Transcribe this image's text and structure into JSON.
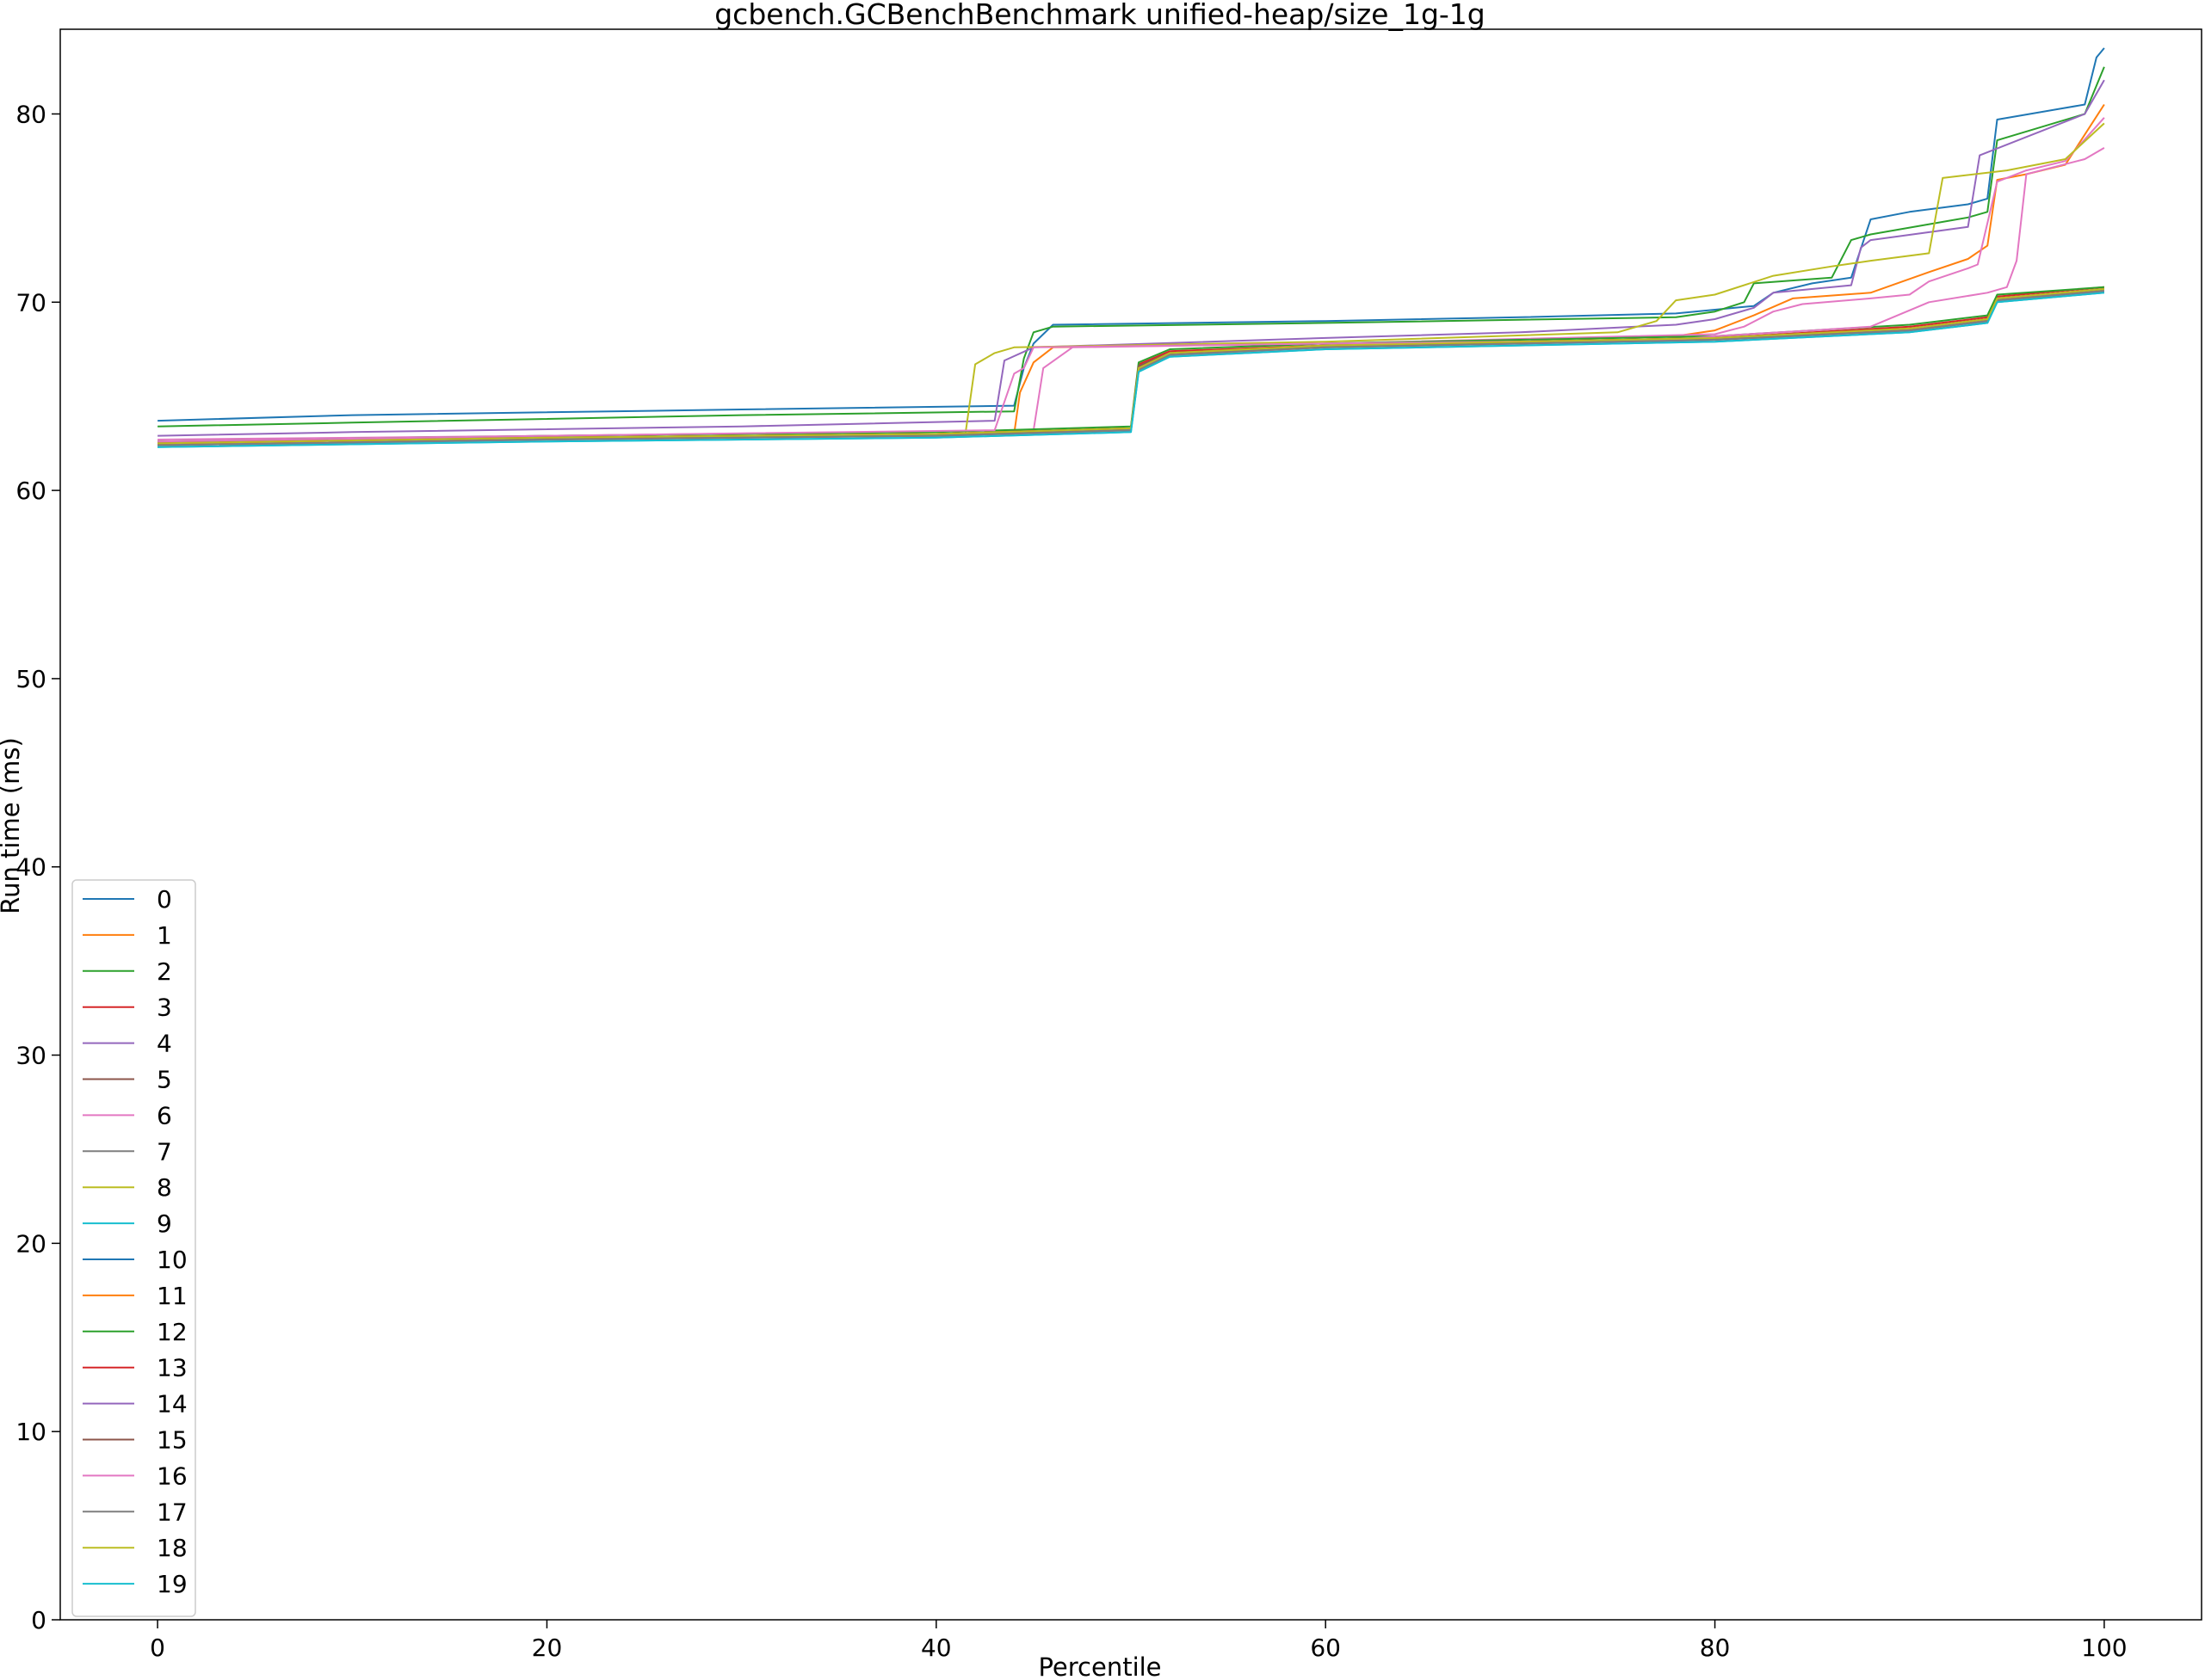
{
  "chart_data": {
    "type": "line",
    "title": "gcbench.GCBenchBenchmark unified-heap/size_1g-1g",
    "xlabel": "Percentile",
    "ylabel": "Run time (ms)",
    "xlim": [
      -5,
      105
    ],
    "ylim": [
      0,
      84.5
    ],
    "xticks": [
      0,
      20,
      40,
      60,
      80,
      100
    ],
    "yticks": [
      0,
      10,
      20,
      30,
      40,
      50,
      60,
      70,
      80
    ],
    "grid": false,
    "legend_position": "lower-left",
    "series": [
      {
        "name": "0",
        "color": "#1f77b4",
        "points": [
          [
            0,
            63.7
          ],
          [
            10,
            64.0
          ],
          [
            30,
            64.3
          ],
          [
            44,
            64.5
          ],
          [
            44.5,
            66.5
          ],
          [
            45,
            67.8
          ],
          [
            46,
            68.8
          ],
          [
            60,
            69.0
          ],
          [
            70,
            69.2
          ],
          [
            78,
            69.4
          ],
          [
            82,
            69.8
          ],
          [
            83,
            70.5
          ],
          [
            85,
            71.0
          ],
          [
            87,
            71.3
          ],
          [
            88,
            74.4
          ],
          [
            90,
            74.8
          ],
          [
            93,
            75.2
          ],
          [
            94,
            75.5
          ],
          [
            94.5,
            79.7
          ],
          [
            99,
            80.5
          ],
          [
            99.6,
            83.0
          ],
          [
            100,
            83.5
          ]
        ]
      },
      {
        "name": "1",
        "color": "#ff7f0e",
        "points": [
          [
            0,
            62.5
          ],
          [
            20,
            62.8
          ],
          [
            44,
            63.0
          ],
          [
            44.3,
            65.2
          ],
          [
            45,
            66.8
          ],
          [
            46,
            67.6
          ],
          [
            60,
            67.8
          ],
          [
            78,
            68.2
          ],
          [
            80,
            68.5
          ],
          [
            82,
            69.3
          ],
          [
            84,
            70.2
          ],
          [
            88,
            70.5
          ],
          [
            91,
            71.6
          ],
          [
            93,
            72.3
          ],
          [
            94,
            73.0
          ],
          [
            94.5,
            76.5
          ],
          [
            96,
            76.8
          ],
          [
            98,
            77.3
          ],
          [
            100,
            80.5
          ]
        ]
      },
      {
        "name": "2",
        "color": "#2ca02c",
        "points": [
          [
            0,
            63.4
          ],
          [
            10,
            63.6
          ],
          [
            30,
            64.0
          ],
          [
            44,
            64.2
          ],
          [
            44.5,
            67.0
          ],
          [
            45,
            68.4
          ],
          [
            46,
            68.7
          ],
          [
            60,
            68.9
          ],
          [
            78,
            69.2
          ],
          [
            80,
            69.5
          ],
          [
            81.5,
            70.0
          ],
          [
            82,
            71.0
          ],
          [
            86,
            71.3
          ],
          [
            87,
            73.3
          ],
          [
            88,
            73.6
          ],
          [
            93,
            74.5
          ],
          [
            94,
            74.8
          ],
          [
            94.5,
            78.6
          ],
          [
            99,
            80.0
          ],
          [
            100,
            82.5
          ]
        ]
      },
      {
        "name": "3",
        "color": "#d62728",
        "points": [
          [
            0,
            62.6
          ],
          [
            20,
            62.8
          ],
          [
            40,
            63.0
          ],
          [
            50,
            63.3
          ],
          [
            50.4,
            66.7
          ],
          [
            52,
            67.4
          ],
          [
            60,
            67.7
          ],
          [
            80,
            68.1
          ],
          [
            90,
            68.7
          ],
          [
            94,
            69.2
          ],
          [
            94.5,
            70.3
          ],
          [
            100,
            70.8
          ]
        ]
      },
      {
        "name": "4",
        "color": "#9467bd",
        "points": [
          [
            0,
            62.9
          ],
          [
            10,
            63.1
          ],
          [
            30,
            63.4
          ],
          [
            43,
            63.7
          ],
          [
            43.5,
            66.9
          ],
          [
            45,
            67.6
          ],
          [
            60,
            68.1
          ],
          [
            70,
            68.4
          ],
          [
            78,
            68.8
          ],
          [
            80,
            69.1
          ],
          [
            82,
            69.7
          ],
          [
            83,
            70.5
          ],
          [
            87,
            70.9
          ],
          [
            87.5,
            72.9
          ],
          [
            88,
            73.3
          ],
          [
            93,
            74.0
          ],
          [
            93.6,
            77.8
          ],
          [
            99,
            80.0
          ],
          [
            100,
            81.8
          ]
        ]
      },
      {
        "name": "5",
        "color": "#8c564b",
        "points": [
          [
            0,
            62.5
          ],
          [
            20,
            62.8
          ],
          [
            40,
            63.0
          ],
          [
            50,
            63.3
          ],
          [
            50.4,
            66.5
          ],
          [
            52,
            67.3
          ],
          [
            60,
            67.7
          ],
          [
            80,
            68.1
          ],
          [
            90,
            68.6
          ],
          [
            94,
            69.1
          ],
          [
            94.5,
            70.2
          ],
          [
            100,
            70.7
          ]
        ]
      },
      {
        "name": "6",
        "color": "#e377c2",
        "points": [
          [
            0,
            62.7
          ],
          [
            20,
            62.9
          ],
          [
            45,
            63.2
          ],
          [
            45.5,
            66.5
          ],
          [
            47,
            67.6
          ],
          [
            60,
            67.8
          ],
          [
            80,
            68.3
          ],
          [
            81.5,
            68.7
          ],
          [
            83,
            69.5
          ],
          [
            84.5,
            69.9
          ],
          [
            88,
            70.2
          ],
          [
            90,
            70.4
          ],
          [
            91,
            71.1
          ],
          [
            93,
            71.8
          ],
          [
            93.5,
            72.0
          ],
          [
            94.5,
            76.4
          ],
          [
            96,
            77.0
          ],
          [
            98,
            77.5
          ],
          [
            100,
            79.8
          ]
        ]
      },
      {
        "name": "7",
        "color": "#7f7f7f",
        "points": [
          [
            0,
            62.4
          ],
          [
            20,
            62.7
          ],
          [
            40,
            62.9
          ],
          [
            50,
            63.2
          ],
          [
            50.4,
            66.4
          ],
          [
            52,
            67.2
          ],
          [
            60,
            67.6
          ],
          [
            80,
            68.0
          ],
          [
            90,
            68.5
          ],
          [
            94,
            69.0
          ],
          [
            94.5,
            70.1
          ],
          [
            100,
            70.6
          ]
        ]
      },
      {
        "name": "8",
        "color": "#bcbd22",
        "points": [
          [
            0,
            62.6
          ],
          [
            20,
            62.8
          ],
          [
            41.5,
            63.0
          ],
          [
            42,
            66.7
          ],
          [
            43,
            67.3
          ],
          [
            44,
            67.6
          ],
          [
            60,
            67.9
          ],
          [
            75,
            68.4
          ],
          [
            77,
            69.0
          ],
          [
            78,
            70.1
          ],
          [
            80,
            70.4
          ],
          [
            83,
            71.4
          ],
          [
            86,
            71.9
          ],
          [
            88,
            72.2
          ],
          [
            91,
            72.6
          ],
          [
            91.7,
            76.6
          ],
          [
            95,
            77.0
          ],
          [
            98,
            77.6
          ],
          [
            100,
            79.5
          ]
        ]
      },
      {
        "name": "9",
        "color": "#17becf",
        "points": [
          [
            0,
            62.3
          ],
          [
            20,
            62.6
          ],
          [
            40,
            62.8
          ],
          [
            50,
            63.1
          ],
          [
            50.4,
            66.3
          ],
          [
            52,
            67.1
          ],
          [
            60,
            67.5
          ],
          [
            80,
            67.9
          ],
          [
            90,
            68.4
          ],
          [
            94,
            68.9
          ],
          [
            94.5,
            70.0
          ],
          [
            100,
            70.5
          ]
        ]
      },
      {
        "name": "10",
        "color": "#1f77b4",
        "points": [
          [
            0,
            62.4
          ],
          [
            20,
            62.7
          ],
          [
            40,
            62.9
          ],
          [
            50,
            63.2
          ],
          [
            50.4,
            66.6
          ],
          [
            52,
            67.3
          ],
          [
            60,
            67.6
          ],
          [
            80,
            68.0
          ],
          [
            90,
            68.5
          ],
          [
            94,
            69.0
          ],
          [
            94.5,
            70.1
          ],
          [
            100,
            70.6
          ]
        ]
      },
      {
        "name": "11",
        "color": "#ff7f0e",
        "points": [
          [
            0,
            62.5
          ],
          [
            20,
            62.8
          ],
          [
            40,
            63.0
          ],
          [
            50,
            63.3
          ],
          [
            50.4,
            66.5
          ],
          [
            52,
            67.3
          ],
          [
            60,
            67.7
          ],
          [
            80,
            68.1
          ],
          [
            90,
            68.6
          ],
          [
            94,
            69.1
          ],
          [
            94.5,
            70.2
          ],
          [
            100,
            70.7
          ]
        ]
      },
      {
        "name": "12",
        "color": "#2ca02c",
        "points": [
          [
            0,
            62.6
          ],
          [
            20,
            62.9
          ],
          [
            40,
            63.1
          ],
          [
            50,
            63.4
          ],
          [
            50.4,
            66.8
          ],
          [
            52,
            67.5
          ],
          [
            60,
            67.8
          ],
          [
            80,
            68.2
          ],
          [
            90,
            68.8
          ],
          [
            94,
            69.3
          ],
          [
            94.5,
            70.4
          ],
          [
            100,
            70.8
          ]
        ]
      },
      {
        "name": "13",
        "color": "#d62728",
        "points": [
          [
            0,
            62.5
          ],
          [
            20,
            62.8
          ],
          [
            40,
            63.0
          ],
          [
            50,
            63.3
          ],
          [
            50.4,
            66.6
          ],
          [
            52,
            67.3
          ],
          [
            60,
            67.7
          ],
          [
            80,
            68.1
          ],
          [
            90,
            68.6
          ],
          [
            94,
            69.1
          ],
          [
            94.5,
            70.2
          ],
          [
            100,
            70.7
          ]
        ]
      },
      {
        "name": "14",
        "color": "#9467bd",
        "points": [
          [
            0,
            62.4
          ],
          [
            20,
            62.7
          ],
          [
            40,
            62.9
          ],
          [
            50,
            63.2
          ],
          [
            50.4,
            66.5
          ],
          [
            52,
            67.2
          ],
          [
            60,
            67.6
          ],
          [
            80,
            68.0
          ],
          [
            90,
            68.5
          ],
          [
            94,
            69.0
          ],
          [
            94.5,
            70.1
          ],
          [
            100,
            70.6
          ]
        ]
      },
      {
        "name": "15",
        "color": "#8c564b",
        "points": [
          [
            0,
            62.5
          ],
          [
            20,
            62.8
          ],
          [
            40,
            63.0
          ],
          [
            50,
            63.3
          ],
          [
            50.4,
            66.6
          ],
          [
            52,
            67.3
          ],
          [
            60,
            67.7
          ],
          [
            80,
            68.1
          ],
          [
            90,
            68.6
          ],
          [
            94,
            69.1
          ],
          [
            94.5,
            70.2
          ],
          [
            100,
            70.7
          ]
        ]
      },
      {
        "name": "16",
        "color": "#e377c2",
        "points": [
          [
            0,
            62.6
          ],
          [
            20,
            62.9
          ],
          [
            43,
            63.2
          ],
          [
            44,
            66.2
          ],
          [
            44.5,
            66.5
          ],
          [
            45,
            67.6
          ],
          [
            60,
            67.8
          ],
          [
            78,
            68.0
          ],
          [
            80,
            68.2
          ],
          [
            85,
            68.5
          ],
          [
            88,
            68.7
          ],
          [
            91,
            70.0
          ],
          [
            94,
            70.5
          ],
          [
            95,
            70.8
          ],
          [
            95.5,
            72.2
          ],
          [
            96,
            76.8
          ],
          [
            99,
            77.6
          ],
          [
            100,
            78.2
          ]
        ]
      },
      {
        "name": "17",
        "color": "#7f7f7f",
        "points": [
          [
            0,
            62.4
          ],
          [
            20,
            62.7
          ],
          [
            40,
            62.9
          ],
          [
            50,
            63.2
          ],
          [
            50.4,
            66.4
          ],
          [
            52,
            67.2
          ],
          [
            60,
            67.6
          ],
          [
            80,
            68.0
          ],
          [
            90,
            68.5
          ],
          [
            94,
            69.0
          ],
          [
            94.5,
            70.1
          ],
          [
            100,
            70.6
          ]
        ]
      },
      {
        "name": "18",
        "color": "#bcbd22",
        "points": [
          [
            0,
            62.5
          ],
          [
            20,
            62.8
          ],
          [
            40,
            63.0
          ],
          [
            50,
            63.3
          ],
          [
            50.4,
            66.5
          ],
          [
            52,
            67.3
          ],
          [
            60,
            67.7
          ],
          [
            80,
            68.1
          ],
          [
            90,
            68.6
          ],
          [
            94,
            69.1
          ],
          [
            94.5,
            70.2
          ],
          [
            100,
            70.7
          ]
        ]
      },
      {
        "name": "19",
        "color": "#17becf",
        "points": [
          [
            0,
            62.3
          ],
          [
            20,
            62.6
          ],
          [
            40,
            62.8
          ],
          [
            50,
            63.1
          ],
          [
            50.4,
            66.3
          ],
          [
            52,
            67.1
          ],
          [
            60,
            67.5
          ],
          [
            80,
            67.9
          ],
          [
            90,
            68.4
          ],
          [
            94,
            68.9
          ],
          [
            94.5,
            70.0
          ],
          [
            100,
            70.5
          ]
        ]
      }
    ]
  }
}
